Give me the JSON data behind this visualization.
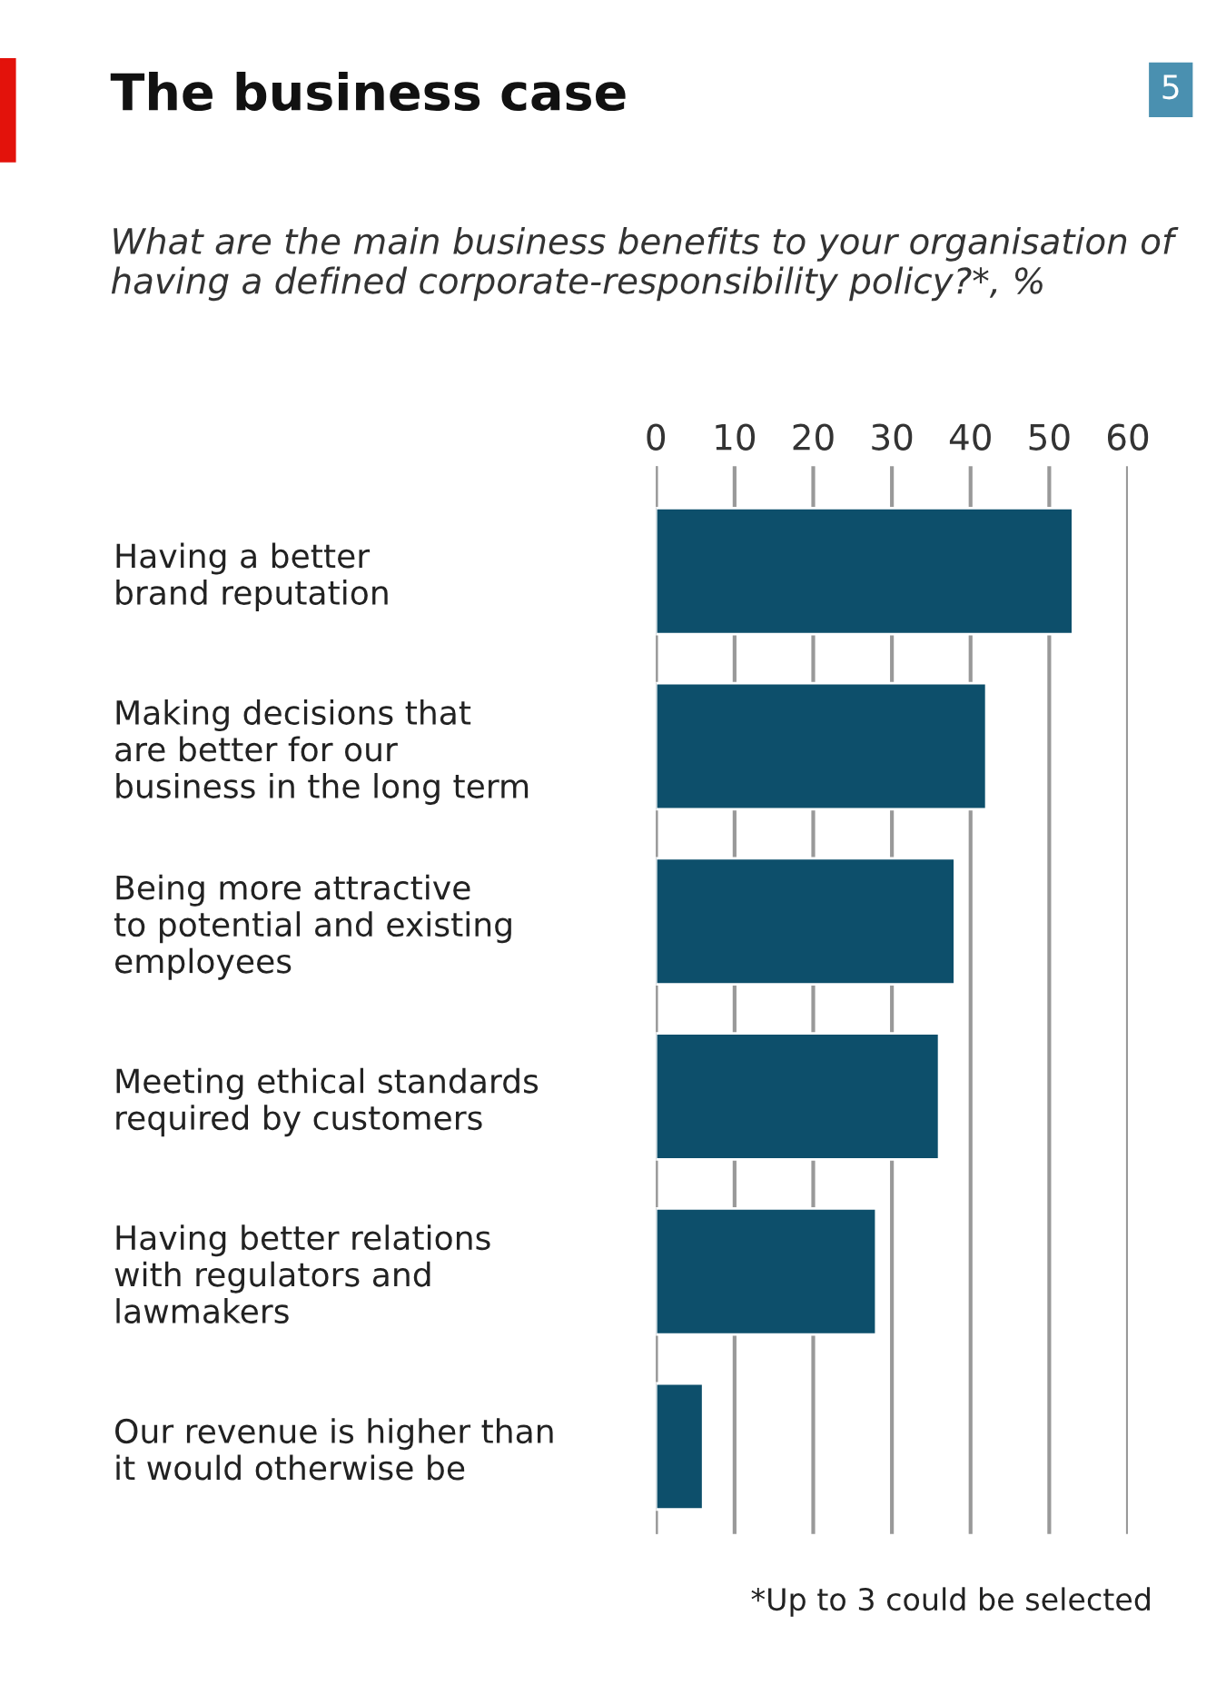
{
  "chart_data": {
    "type": "bar",
    "orientation": "horizontal",
    "title": "The business case",
    "subtitle": "What are the main business benefits to your organisation of having a defined corporate-responsibility policy?*, %",
    "categories": [
      "Having a better\nbrand reputation",
      "Making decisions that\nare better for our\nbusiness in the long term",
      "Being more attractive\nto potential and existing\nemployees",
      "Meeting ethical standards\nrequired by customers",
      "Having better relations\nwith regulators and\nlawmakers",
      "Our revenue is higher than\nit would otherwise be"
    ],
    "values": [
      53,
      42,
      38,
      36,
      28,
      6
    ],
    "color": "#0d4f6b",
    "xlim": [
      0,
      60
    ],
    "xticks": [
      0,
      10,
      20,
      30,
      40,
      50,
      60
    ],
    "grid": "x",
    "annotations": [
      "5",
      "*Up to 3 could be selected"
    ]
  }
}
